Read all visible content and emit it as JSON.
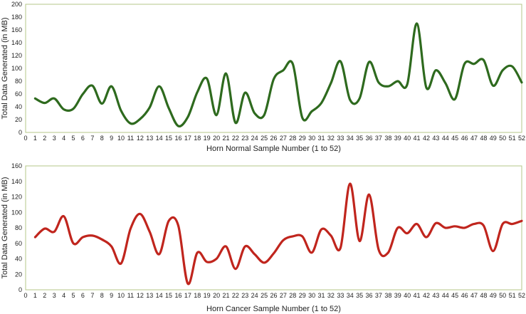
{
  "chart_data": [
    {
      "type": "line",
      "xlabel": "Horn Normal Sample Number (1 to 52)",
      "ylabel": "Total Data Generated (in MB)",
      "ylim": [
        0,
        200
      ],
      "yticks": [
        0,
        20,
        40,
        60,
        80,
        100,
        120,
        140,
        160,
        180,
        200
      ],
      "xlim": [
        0,
        52
      ],
      "color": "#2e6a1e",
      "grid": false,
      "series": [
        {
          "x": [
            1,
            2,
            3,
            4,
            5,
            6,
            7,
            8,
            9,
            10,
            11,
            12,
            13,
            14,
            15,
            16,
            17,
            18,
            19,
            20,
            21,
            22,
            23,
            24,
            25,
            26,
            27,
            28,
            29,
            30,
            31,
            32,
            33,
            34,
            35,
            36,
            37,
            38,
            39,
            40,
            41,
            42,
            43,
            44,
            45,
            46,
            47,
            48,
            49,
            50,
            51,
            52
          ],
          "values": [
            53,
            46,
            53,
            36,
            37,
            60,
            73,
            45,
            72,
            34,
            14,
            21,
            39,
            72,
            38,
            10,
            24,
            63,
            84,
            27,
            92,
            15,
            62,
            30,
            27,
            83,
            97,
            107,
            23,
            33,
            46,
            77,
            111,
            51,
            53,
            110,
            78,
            72,
            80,
            75,
            170,
            70,
            97,
            77,
            52,
            107,
            107,
            113,
            73,
            97,
            103,
            78
          ]
        }
      ]
    },
    {
      "type": "line",
      "xlabel": "Horn Cancer Sample Number (1 to 52)",
      "ylabel": "Total Data Generated (in MB)",
      "ylim": [
        0,
        160
      ],
      "yticks": [
        0,
        20,
        40,
        60,
        80,
        100,
        120,
        140,
        160
      ],
      "xlim": [
        0,
        52
      ],
      "color": "#c0251d",
      "grid": false,
      "series": [
        {
          "x": [
            1,
            2,
            3,
            4,
            5,
            6,
            7,
            8,
            9,
            10,
            11,
            12,
            13,
            14,
            15,
            16,
            17,
            18,
            19,
            20,
            21,
            22,
            23,
            24,
            25,
            26,
            27,
            28,
            29,
            30,
            31,
            32,
            33,
            34,
            35,
            36,
            37,
            38,
            39,
            40,
            41,
            42,
            43,
            44,
            45,
            46,
            47,
            48,
            49,
            50,
            51,
            52
          ],
          "values": [
            68,
            79,
            75,
            95,
            60,
            68,
            70,
            65,
            56,
            34,
            79,
            98,
            75,
            46,
            89,
            83,
            8,
            48,
            36,
            40,
            56,
            27,
            56,
            46,
            35,
            47,
            64,
            69,
            69,
            48,
            78,
            70,
            54,
            137,
            63,
            123,
            52,
            48,
            80,
            73,
            85,
            68,
            86,
            80,
            82,
            80,
            85,
            83,
            50,
            85,
            85,
            89
          ]
        }
      ]
    }
  ]
}
